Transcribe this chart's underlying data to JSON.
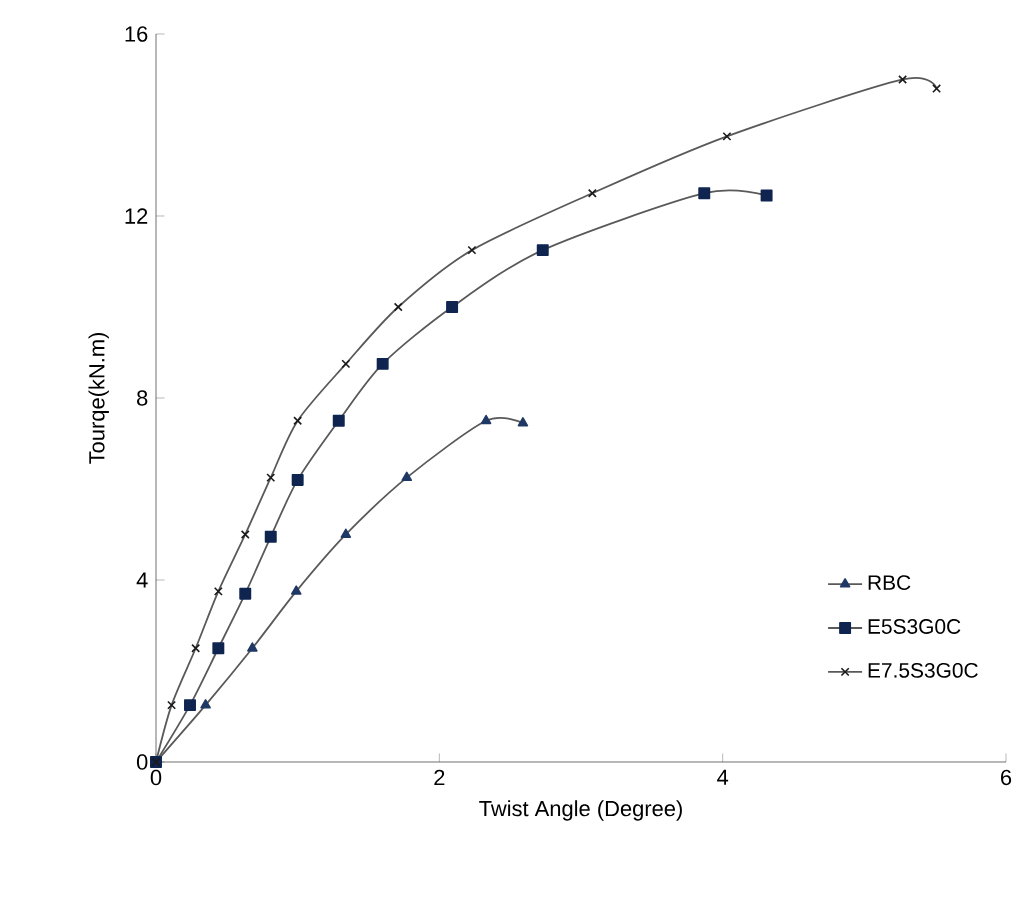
{
  "chart_data": {
    "type": "line",
    "xlabel": "Twist Angle (Degree)",
    "ylabel": "Tourqe(kN.m)",
    "xlim": [
      0,
      6
    ],
    "ylim": [
      0,
      16
    ],
    "xticks": [
      0,
      2,
      4,
      6
    ],
    "yticks": [
      0,
      4,
      8,
      12,
      16
    ],
    "grid": false,
    "legend": "bottom right",
    "series": [
      {
        "name": "RBC",
        "color": "#1f3864",
        "marker": "triangle",
        "x": [
          0,
          0.35,
          0.68,
          0.99,
          1.34,
          1.77,
          2.33,
          2.59
        ],
        "values": [
          0,
          1.25,
          2.5,
          3.75,
          5,
          6.25,
          7.5,
          7.45
        ]
      },
      {
        "name": "E5S3G0C",
        "color": "#0f2550",
        "marker": "square",
        "x": [
          0,
          0.24,
          0.44,
          0.63,
          0.81,
          1.0,
          1.29,
          1.6,
          2.09,
          2.73,
          3.87,
          4.31
        ],
        "values": [
          0,
          1.25,
          2.5,
          3.7,
          4.95,
          6.2,
          7.5,
          8.75,
          10,
          11.25,
          12.5,
          12.45
        ]
      },
      {
        "name": "E7.5S3G0C",
        "color": "#1a1a1a",
        "marker": "cross",
        "x": [
          0,
          0.11,
          0.28,
          0.44,
          0.63,
          0.81,
          1.0,
          1.34,
          1.71,
          2.23,
          3.08,
          4.03,
          5.27,
          5.51
        ],
        "values": [
          0,
          1.25,
          2.5,
          3.75,
          5,
          6.25,
          7.5,
          8.75,
          10,
          11.25,
          12.5,
          13.75,
          15,
          14.8
        ]
      }
    ]
  }
}
